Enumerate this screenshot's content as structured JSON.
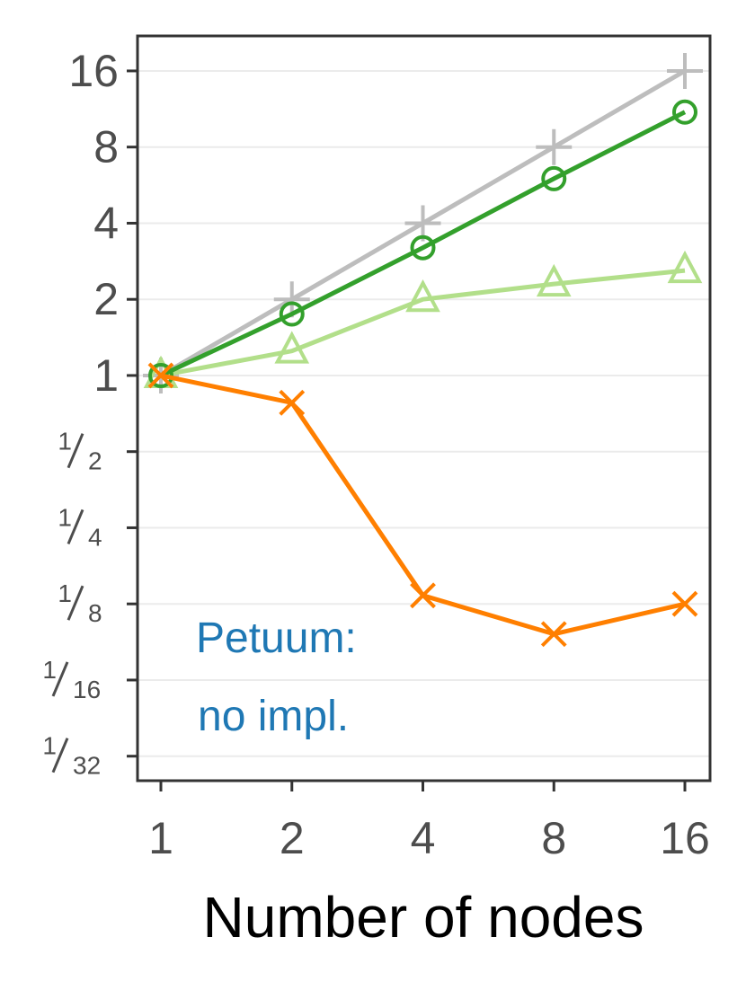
{
  "chart_data": {
    "type": "line",
    "xlabel": "Number of nodes",
    "ylabel": "",
    "x_scale": "log2",
    "y_scale": "log2",
    "x": [
      1,
      2,
      4,
      8,
      16
    ],
    "xticks": [
      "1",
      "2",
      "4",
      "8",
      "16"
    ],
    "yticks": [
      {
        "value": 16,
        "label": "16"
      },
      {
        "value": 8,
        "label": "8"
      },
      {
        "value": 4,
        "label": "4"
      },
      {
        "value": 2,
        "label": "2"
      },
      {
        "value": 1,
        "label": "1"
      },
      {
        "value": 0.5,
        "num": "1",
        "den": "2"
      },
      {
        "value": 0.25,
        "num": "1",
        "den": "4"
      },
      {
        "value": 0.125,
        "num": "1",
        "den": "8"
      },
      {
        "value": 0.0625,
        "num": "1",
        "den": "16"
      },
      {
        "value": 0.03125,
        "num": "1",
        "den": "32"
      }
    ],
    "ylim": [
      0.025,
      22
    ],
    "grid": "horizontal",
    "series": [
      {
        "color": "#bdbdbd",
        "marker": "plus",
        "values": [
          1,
          2,
          4,
          8,
          16
        ]
      },
      {
        "color": "#b2df8a",
        "marker": "triangle",
        "values": [
          1,
          1.25,
          2,
          2.3,
          2.6
        ]
      },
      {
        "color": "#33a02c",
        "marker": "circle",
        "values": [
          1,
          1.75,
          3.2,
          6,
          11
        ]
      },
      {
        "color": "#ff7f00",
        "marker": "cross",
        "values": [
          1,
          0.78,
          0.135,
          0.095,
          0.125
        ]
      }
    ],
    "annotation": {
      "lines": [
        "Petuum:",
        "no impl."
      ],
      "color": "#1f78b4"
    }
  }
}
